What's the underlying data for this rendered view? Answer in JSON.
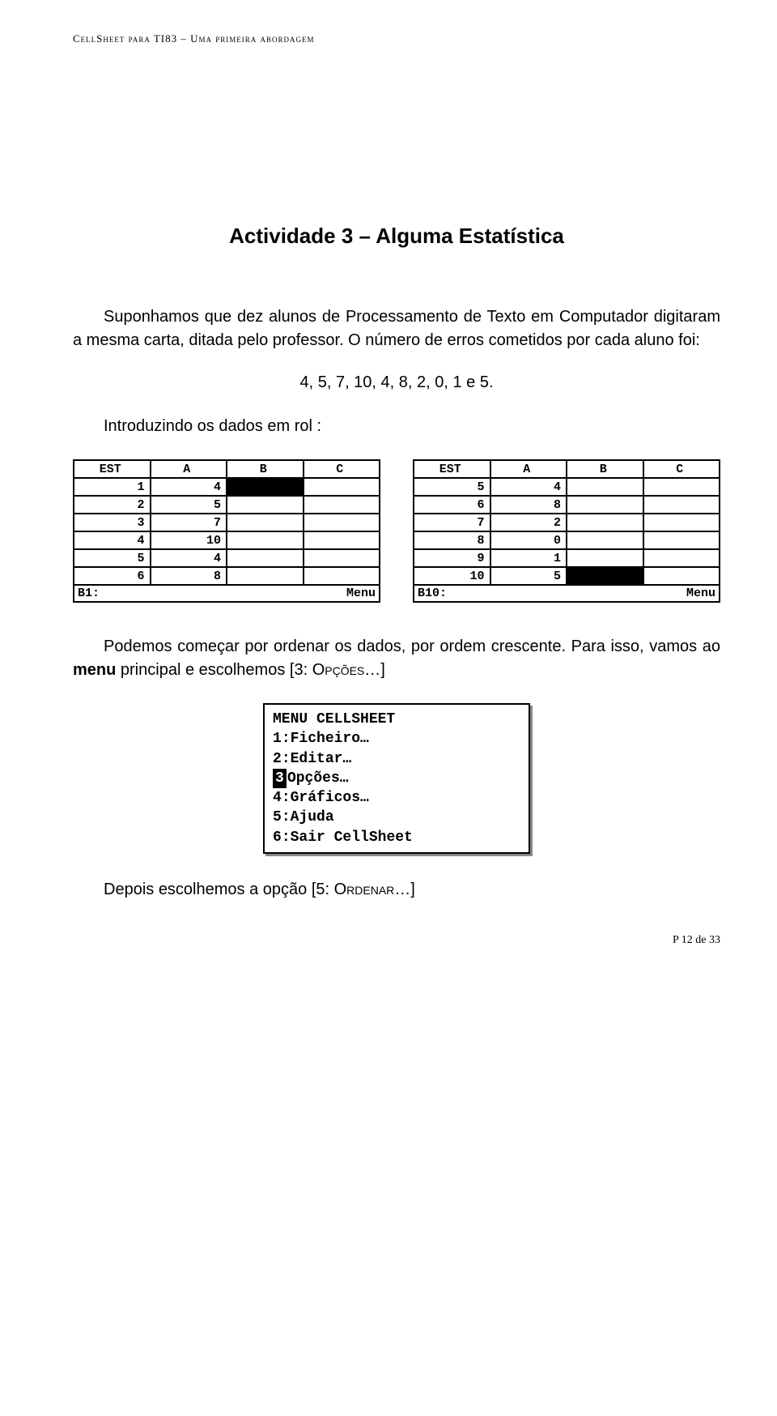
{
  "header": "CellSheet para TI83 – Uma primeira abordagem",
  "title": "Actividade 3 – Alguma Estatística",
  "p1": "Suponhamos que dez alunos de Processamento de Texto em Computador digitaram a mesma carta, ditada pelo professor. O número de erros cometidos por cada aluno foi:",
  "dataline": "4, 5, 7, 10, 4, 8, 2, 0, 1 e 5.",
  "p2": "Introduzindo os dados em rol :",
  "screen1": {
    "name": "EST",
    "cols": [
      "A",
      "B",
      "C"
    ],
    "rows": [
      {
        "n": "1",
        "a": "4"
      },
      {
        "n": "2",
        "a": "5"
      },
      {
        "n": "3",
        "a": "7"
      },
      {
        "n": "4",
        "a": "10"
      },
      {
        "n": "5",
        "a": "4"
      },
      {
        "n": "6",
        "a": "8"
      }
    ],
    "status_left": "B1:",
    "status_right": "Menu"
  },
  "screen2": {
    "name": "EST",
    "cols": [
      "A",
      "B",
      "C"
    ],
    "rows": [
      {
        "n": "5",
        "a": "4"
      },
      {
        "n": "6",
        "a": "8"
      },
      {
        "n": "7",
        "a": "2"
      },
      {
        "n": "8",
        "a": "0"
      },
      {
        "n": "9",
        "a": "1"
      },
      {
        "n": "10",
        "a": "5"
      }
    ],
    "status_left": "B10:",
    "status_right": "Menu"
  },
  "p3a": "Podemos começar por ordenar os dados, por ordem crescente. Para isso, vamos ao ",
  "p3b": "menu",
  "p3c": " principal e escolhemos [3: ",
  "p3d": "Opções",
  "p3e": "…]",
  "menu": {
    "title": "MENU CELLSHEET",
    "items": [
      {
        "n": "1",
        "label": "Ficheiro…"
      },
      {
        "n": "2",
        "label": "Editar…"
      },
      {
        "n": "3",
        "label": "Opções…"
      },
      {
        "n": "4",
        "label": "Gráficos…"
      },
      {
        "n": "5",
        "label": "Ajuda"
      },
      {
        "n": "6",
        "label": "Sair CellSheet"
      }
    ],
    "selected": "3"
  },
  "p4a": "Depois escolhemos a opção [5: ",
  "p4b": "Ordenar",
  "p4c": "…]",
  "footer": "P 12 de 33"
}
